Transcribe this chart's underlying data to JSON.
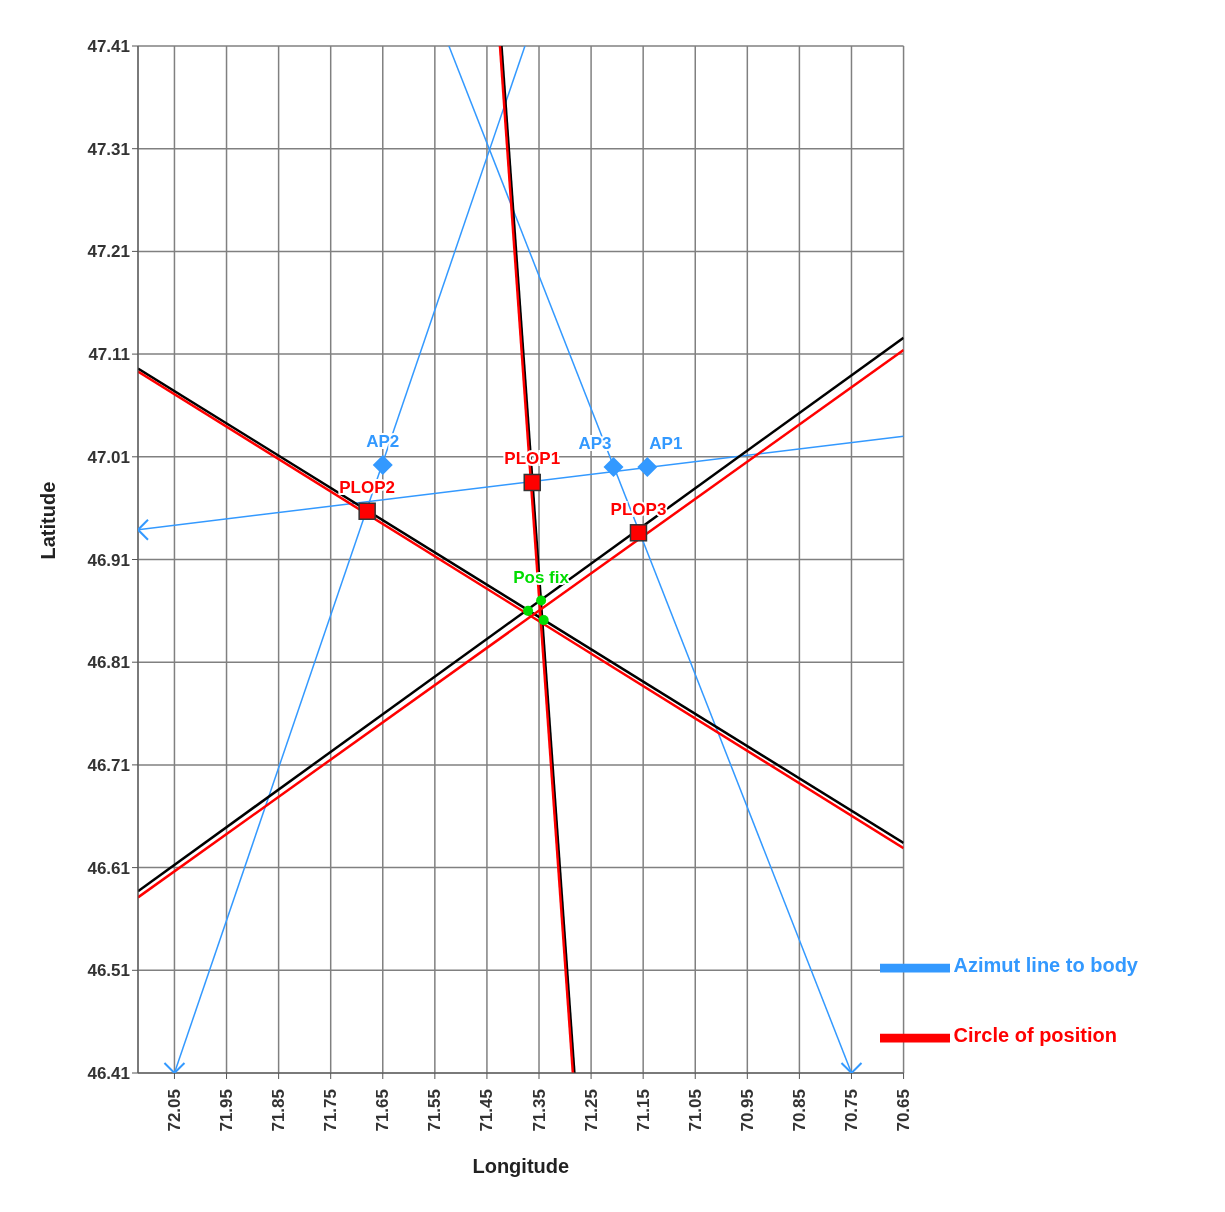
{
  "chart_data": {
    "type": "line",
    "xlabel": "Longitude",
    "ylabel": "Latitude",
    "xlim": [
      72.12,
      70.65
    ],
    "ylim": [
      46.41,
      47.41
    ],
    "xticks": [
      72.05,
      71.95,
      71.85,
      71.75,
      71.65,
      71.55,
      71.45,
      71.35,
      71.25,
      71.15,
      71.05,
      70.95,
      70.85,
      70.75,
      70.65
    ],
    "yticks": [
      46.41,
      46.51,
      46.61,
      46.71,
      46.81,
      46.91,
      47.01,
      47.11,
      47.21,
      47.31,
      47.41
    ],
    "grid": true,
    "legend": "bottom right",
    "series": [
      {
        "type": "line",
        "name": "Azimut line to body",
        "color": "#3399ff",
        "x": [
          72.05,
          71.377
        ],
        "values": [
          46.41,
          47.41
        ]
      },
      {
        "type": "line",
        "color": "#3399ff",
        "x": [
          72.12,
          70.65
        ],
        "values": [
          46.939,
          47.03
        ]
      },
      {
        "type": "line",
        "color": "#3399ff",
        "x": [
          71.523,
          70.75
        ],
        "values": [
          47.41,
          46.41
        ]
      },
      {
        "type": "line",
        "color": "#000000",
        "x": [
          71.422,
          71.282
        ],
        "values": [
          47.41,
          46.41
        ]
      },
      {
        "type": "line",
        "color": "#000000",
        "x": [
          72.12,
          70.65
        ],
        "values": [
          47.096,
          46.634
        ]
      },
      {
        "type": "line",
        "color": "#000000",
        "x": [
          72.12,
          70.65
        ],
        "values": [
          46.587,
          47.126
        ]
      },
      {
        "type": "line",
        "name": "Circle of position",
        "color": "#ff0000",
        "x": [
          71.425,
          71.285
        ],
        "values": [
          47.41,
          46.41
        ]
      },
      {
        "type": "line",
        "color": "#ff0000",
        "x": [
          72.12,
          70.65
        ],
        "values": [
          47.093,
          46.629
        ]
      },
      {
        "type": "line",
        "color": "#ff0000",
        "x": [
          72.12,
          70.65
        ],
        "values": [
          46.581,
          47.114
        ]
      },
      {
        "type": "scatter",
        "marker": "cross",
        "color": "#3399ff",
        "x": [
          72.05,
          72.12,
          70.75
        ],
        "values": [
          46.41,
          46.939,
          46.41
        ]
      },
      {
        "type": "scatter",
        "marker": "diamond",
        "color": "#3399ff",
        "x": [
          71.65,
          71.207,
          71.142
        ],
        "values": [
          47.002,
          47.0,
          47.0
        ]
      },
      {
        "type": "scatter",
        "marker": "square",
        "color": "#ff0000",
        "x": [
          71.363,
          71.68,
          71.159
        ],
        "values": [
          46.985,
          46.957,
          46.936
        ]
      },
      {
        "type": "scatter",
        "marker": "circle",
        "color": "#00dd00",
        "x": [
          71.371,
          71.346,
          71.341
        ],
        "values": [
          46.86,
          46.87,
          46.851
        ]
      }
    ],
    "annotations": [
      {
        "text": "AP2",
        "x": 71.65,
        "y": 47.002
      },
      {
        "text": "AP3",
        "x": 71.207,
        "y": 47.0
      },
      {
        "text": "AP1",
        "x": 71.142,
        "y": 47.0
      },
      {
        "text": "PLOP1",
        "x": 71.363,
        "y": 46.985
      },
      {
        "text": "PLOP2",
        "x": 71.68,
        "y": 46.957
      },
      {
        "text": "PLOP3",
        "x": 71.159,
        "y": 46.936
      },
      {
        "text": "Pos fix",
        "x": 71.346,
        "y": 46.87
      }
    ]
  }
}
